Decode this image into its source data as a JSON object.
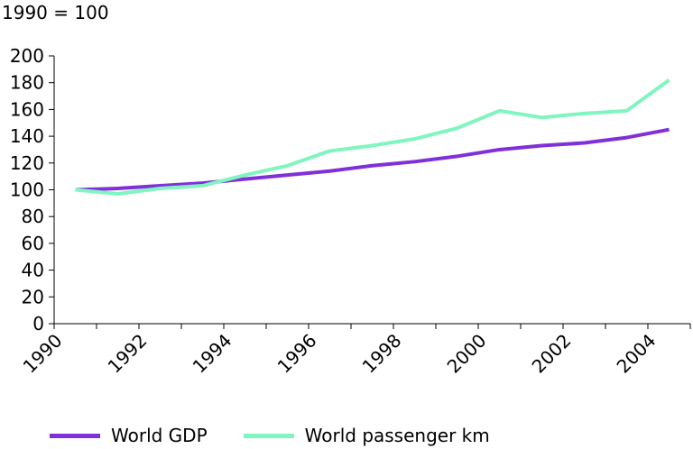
{
  "chart_data": {
    "type": "line",
    "title": "",
    "unit_label": "1990 = 100",
    "xlabel": "",
    "ylabel": "",
    "x": [
      1990,
      1991,
      1992,
      1993,
      1994,
      1995,
      1996,
      1997,
      1998,
      1999,
      2000,
      2001,
      2002,
      2003,
      2004
    ],
    "x_tick_labels": [
      "1990",
      "1992",
      "1994",
      "1996",
      "1998",
      "2000",
      "2002",
      "2004"
    ],
    "x_tick_values": [
      1990,
      1992,
      1994,
      1996,
      1998,
      2000,
      2002,
      2004
    ],
    "y_tick_labels": [
      "0",
      "20",
      "40",
      "60",
      "80",
      "100",
      "120",
      "140",
      "160",
      "180",
      "200"
    ],
    "ylim": [
      0,
      200
    ],
    "grid": false,
    "legend_position": "bottom",
    "series": [
      {
        "name": "World GDP",
        "color": "#8030d8",
        "values": [
          100,
          101,
          103,
          105,
          108,
          111,
          114,
          118,
          121,
          125,
          130,
          133,
          135,
          139,
          145
        ]
      },
      {
        "name": "World passenger km",
        "color": "#7ff5c0",
        "values": [
          100,
          97,
          101,
          103,
          111,
          118,
          129,
          133,
          138,
          146,
          159,
          154,
          157,
          159,
          182
        ]
      }
    ]
  }
}
